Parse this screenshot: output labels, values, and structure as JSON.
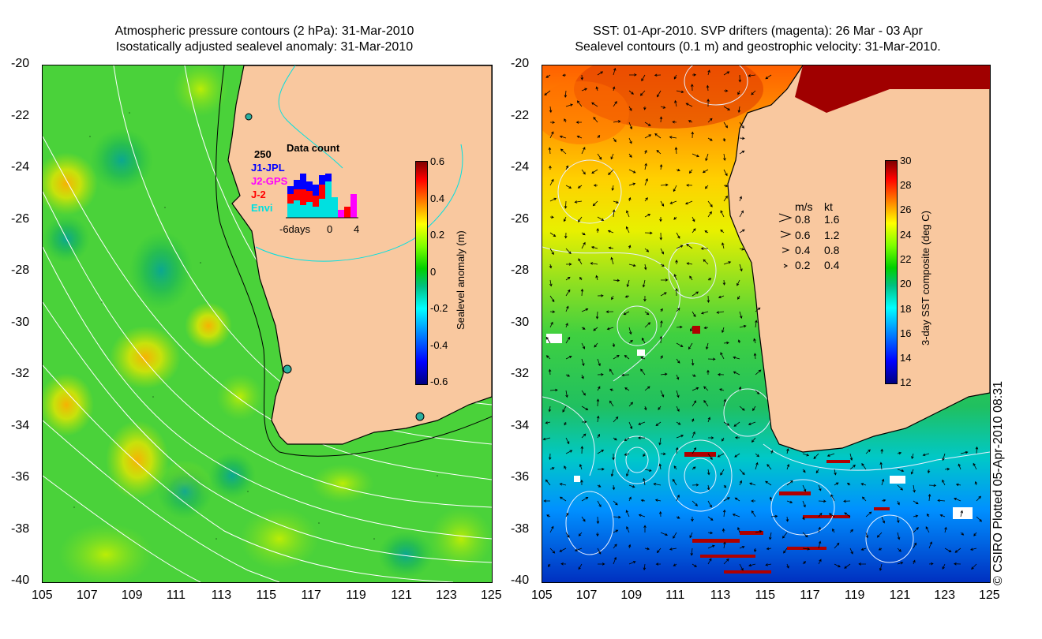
{
  "left_panel": {
    "title_line1": "Atmospheric pressure contours (2 hPa): 31-Mar-2010",
    "title_line2": "Isostatically adjusted sealevel anomaly: 31-Mar-2010",
    "colorbar": {
      "title": "Sealevel anomaly (m)",
      "labels": [
        "0.6",
        "0.4",
        "0.2",
        "0",
        "-0.2",
        "-0.4",
        "-0.6"
      ],
      "colors": [
        "#00007f",
        "#0000ff",
        "#007fff",
        "#00ffff",
        "#00c080",
        "#00d000",
        "#7fff00",
        "#ffff00",
        "#ff7f00",
        "#ff0000",
        "#7f0000"
      ]
    },
    "histogram": {
      "title": "Data count",
      "ymax_label": "250",
      "x_labels": [
        "-6days",
        "0",
        "4"
      ],
      "legend": [
        {
          "name": "J1-JPL",
          "color": "#0000ff"
        },
        {
          "name": "J2-GPS",
          "color": "#ff00ff"
        },
        {
          "name": "J-2",
          "color": "#ff0000"
        },
        {
          "name": "Envi",
          "color": "#00e0e0"
        }
      ]
    }
  },
  "right_panel": {
    "title_line1": "SST: 01-Apr-2010. SVP drifters (magenta): 26 Mar - 03 Apr",
    "title_line2": "Sealevel contours (0.1 m) and geostrophic velocity: 31-Mar-2010.",
    "colorbar": {
      "title": "3-day SST composite (deg C)",
      "labels": [
        "30",
        "28",
        "26",
        "24",
        "22",
        "20",
        "18",
        "16",
        "14",
        "12"
      ],
      "colors": [
        "#00007f",
        "#0000ff",
        "#007fff",
        "#00ffff",
        "#00c080",
        "#00d000",
        "#7fff00",
        "#ffff00",
        "#ff7f00",
        "#ff0000",
        "#7f0000"
      ]
    },
    "velocity_legend": {
      "header_ms": "m/s",
      "header_kt": "kt",
      "rows": [
        {
          "ms": "0.8",
          "kt": "1.6"
        },
        {
          "ms": "0.6",
          "kt": "1.2"
        },
        {
          "ms": "0.4",
          "kt": "0.8"
        },
        {
          "ms": "0.2",
          "kt": "0.4"
        }
      ]
    }
  },
  "axes": {
    "x_ticks": [
      "105",
      "107",
      "109",
      "111",
      "113",
      "115",
      "117",
      "119",
      "121",
      "123",
      "125"
    ],
    "y_ticks": [
      "-20",
      "-22",
      "-24",
      "-26",
      "-28",
      "-30",
      "-32",
      "-34",
      "-36",
      "-38",
      "-40"
    ]
  },
  "copyright": "© CSIRO Plotted 05-Apr-2010 08:31",
  "colors": {
    "land": "#f9c89f",
    "sea_left": "#4ad23a",
    "coast": "#000000"
  }
}
